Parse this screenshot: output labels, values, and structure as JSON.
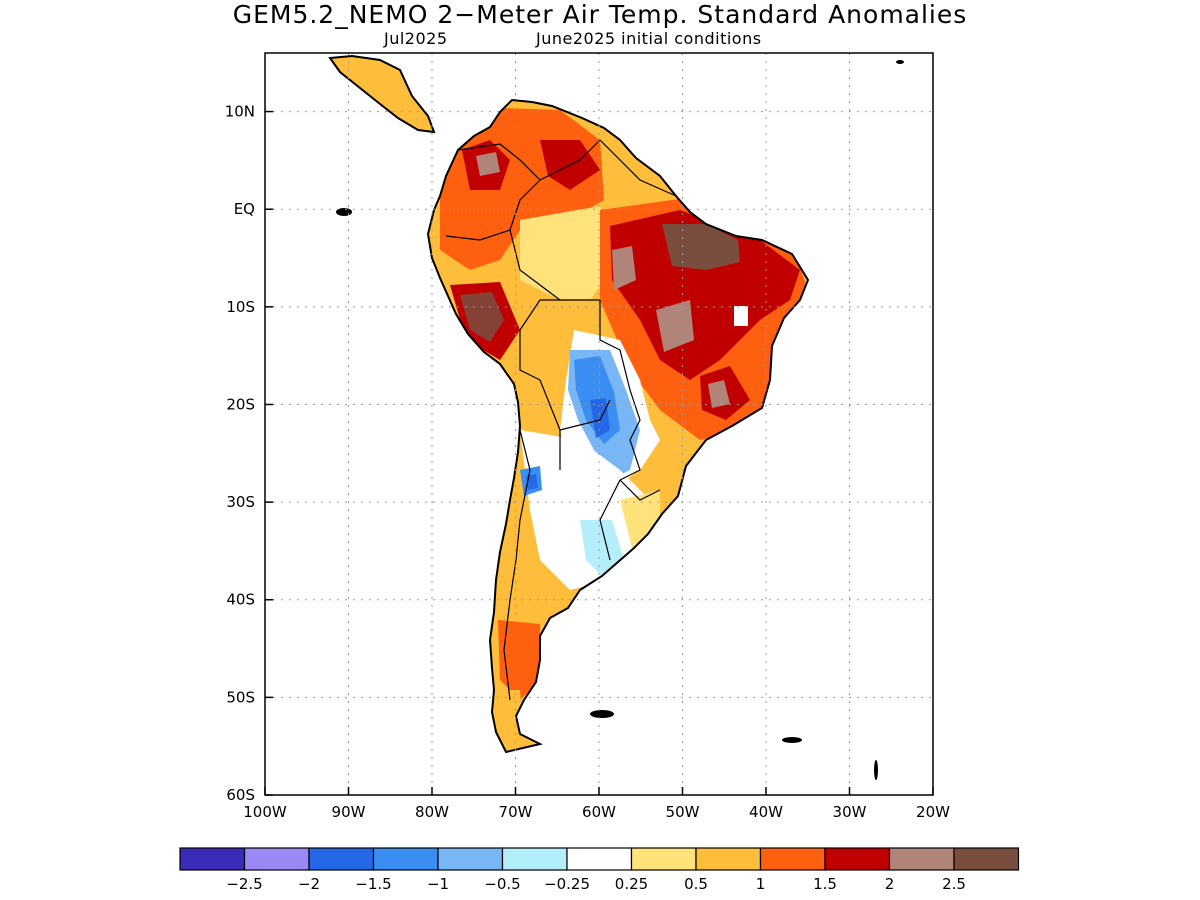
{
  "title": "GEM5.2_NEMO 2−Meter Air Temp. Standard Anomalies",
  "subtitle_left": "Jul2025",
  "subtitle_right": "June2025 initial conditions",
  "map": {
    "lon_range": [
      -100,
      -20
    ],
    "lat_range": [
      -60,
      16
    ],
    "x_ticks": [
      {
        "lon": -100,
        "label": "100W"
      },
      {
        "lon": -90,
        "label": "90W"
      },
      {
        "lon": -80,
        "label": "80W"
      },
      {
        "lon": -70,
        "label": "70W"
      },
      {
        "lon": -60,
        "label": "60W"
      },
      {
        "lon": -50,
        "label": "50W"
      },
      {
        "lon": -40,
        "label": "40W"
      },
      {
        "lon": -30,
        "label": "30W"
      },
      {
        "lon": -20,
        "label": "20W"
      }
    ],
    "y_ticks": [
      {
        "lat": 10,
        "label": "10N"
      },
      {
        "lat": 0,
        "label": "EQ"
      },
      {
        "lat": -10,
        "label": "10S"
      },
      {
        "lat": -20,
        "label": "20S"
      },
      {
        "lat": -30,
        "label": "30S"
      },
      {
        "lat": -40,
        "label": "40S"
      },
      {
        "lat": -50,
        "label": "50S"
      },
      {
        "lat": -60,
        "label": "60S"
      }
    ],
    "gridlines": true
  },
  "colorbar": {
    "colors": [
      "#3a2bb8",
      "#9a88f5",
      "#2468e8",
      "#3a8ef2",
      "#78b6f5",
      "#b4eefa",
      "#ffffff",
      "#ffe27a",
      "#ffbd3c",
      "#ff6010",
      "#c00000",
      "#b08478",
      "#7a4e3f"
    ],
    "labels": [
      "−2.5",
      "−2",
      "−1.5",
      "−1",
      "−0.5",
      "−0.25",
      "0.25",
      "0.5",
      "1",
      "1.5",
      "2",
      "2.5"
    ]
  }
}
